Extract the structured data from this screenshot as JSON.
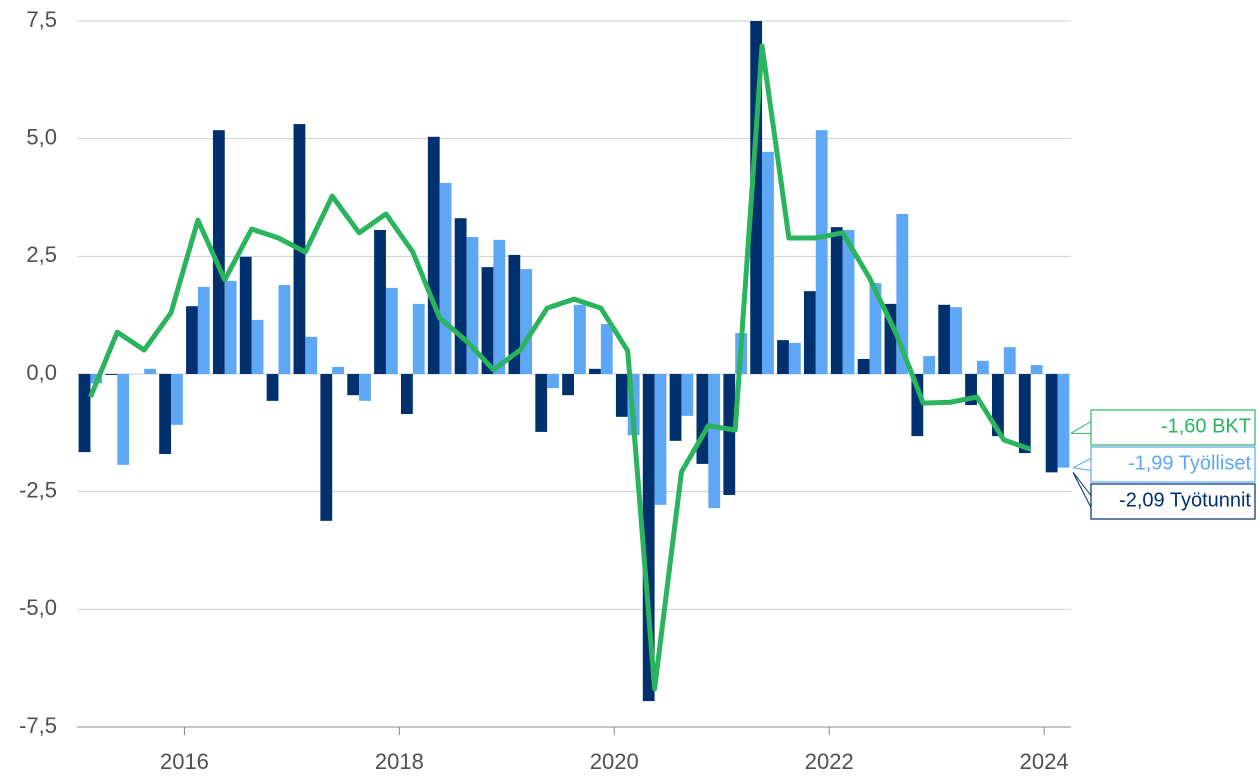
{
  "chart_data": {
    "type": "bar-line",
    "categories": [
      null,
      null,
      null,
      null,
      null,
      null,
      null,
      null,
      null,
      null,
      null,
      null,
      null,
      null,
      null,
      null,
      null,
      null,
      null,
      null,
      null,
      null,
      null,
      null,
      null,
      null,
      null,
      null,
      null,
      null,
      null,
      null,
      null,
      null,
      null,
      null,
      null
    ],
    "xlim": [
      2015,
      2024.25
    ],
    "xticks": [
      2016,
      2018,
      2020,
      2022,
      2024
    ],
    "ylim": [
      -7.5,
      7.5
    ],
    "yticks": [
      {
        "value": 7.5,
        "label": "7,5"
      },
      {
        "value": 5,
        "label": "5,0"
      },
      {
        "value": 2.5,
        "label": "2,5"
      },
      {
        "value": 0,
        "label": "0,0"
      },
      {
        "value": -2.5,
        "label": "-2,5"
      },
      {
        "value": -5,
        "label": "-5,0"
      },
      {
        "value": -7.5,
        "label": "-7,5"
      }
    ],
    "grid": true,
    "series": [
      {
        "name": "Työtunnit",
        "kind": "bar",
        "color": "#00306e",
        "values": [
          -1.66,
          -0.02,
          0,
          -1.7,
          1.44,
          5.18,
          2.49,
          -0.57,
          5.31,
          -3.12,
          -0.45,
          3.06,
          -0.85,
          5.04,
          3.31,
          2.27,
          2.53,
          -1.23,
          -0.45,
          0.11,
          -0.91,
          -6.95,
          -1.42,
          -1.91,
          -2.57,
          7.5,
          0.72,
          1.76,
          3.12,
          0.32,
          1.49,
          -1.32,
          1.47,
          -0.66,
          -1.32,
          -1.68,
          -2.09
        ],
        "value_labels": [
          null,
          null,
          null,
          null,
          null,
          null,
          null,
          null,
          null,
          null,
          null,
          null,
          null,
          null,
          null,
          null,
          null,
          null,
          null,
          null,
          null,
          null,
          null,
          null,
          null,
          null,
          null,
          null,
          null,
          null,
          null,
          null,
          null,
          null,
          null,
          null,
          "-2,09"
        ]
      },
      {
        "name": "Työlliset",
        "kind": "bar",
        "color": "#5ea7f5",
        "values": [
          -0.2,
          -1.93,
          0.11,
          -1.08,
          1.85,
          1.98,
          1.15,
          1.89,
          0.79,
          0.15,
          -0.57,
          1.83,
          1.49,
          4.06,
          2.91,
          2.85,
          2.23,
          -0.3,
          1.47,
          1.06,
          -1.3,
          -2.78,
          -0.89,
          -2.85,
          0.87,
          4.72,
          0.66,
          5.18,
          3.06,
          1.93,
          3.4,
          0.38,
          1.42,
          0.28,
          0.57,
          0.19,
          -1.99
        ],
        "value_labels": [
          null,
          null,
          null,
          null,
          null,
          null,
          null,
          null,
          null,
          null,
          null,
          null,
          null,
          null,
          null,
          null,
          null,
          null,
          null,
          null,
          null,
          null,
          null,
          null,
          null,
          null,
          null,
          null,
          null,
          null,
          null,
          null,
          null,
          null,
          null,
          null,
          "-1,99"
        ]
      },
      {
        "name": "BKT",
        "kind": "line",
        "color": "#2ab45e",
        "values": [
          -0.49,
          0.89,
          0.51,
          1.3,
          3.27,
          2.0,
          3.08,
          2.89,
          2.59,
          3.78,
          3.0,
          3.4,
          2.59,
          1.19,
          0.7,
          0.09,
          0.51,
          1.4,
          1.59,
          1.4,
          0.49,
          -6.69,
          -2.08,
          -1.1,
          -1.19,
          6.97,
          2.89,
          2.89,
          3.0,
          2.04,
          0.85,
          -0.62,
          -0.6,
          -0.49,
          -1.4,
          -1.6,
          null
        ],
        "value_labels": [
          null,
          null,
          null,
          null,
          null,
          null,
          null,
          null,
          null,
          null,
          null,
          null,
          null,
          null,
          null,
          null,
          null,
          null,
          null,
          null,
          null,
          null,
          null,
          null,
          null,
          null,
          null,
          null,
          null,
          null,
          null,
          null,
          null,
          null,
          null,
          "-1,60",
          null
        ]
      }
    ]
  }
}
